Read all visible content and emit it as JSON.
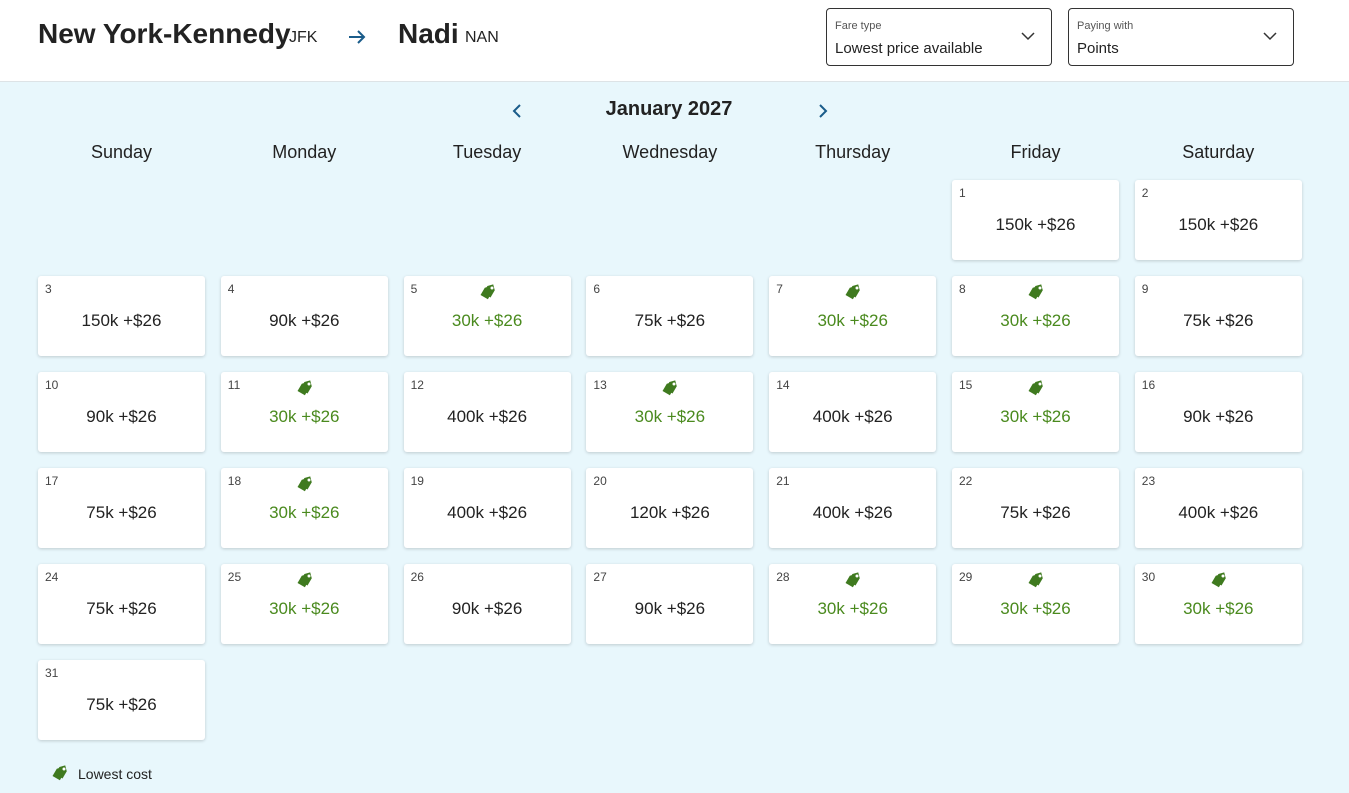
{
  "header": {
    "origin_city": "New York-Kennedy",
    "origin_code": "JFK",
    "destination_city": "Nadi",
    "destination_code": "NAN"
  },
  "fare_type": {
    "label": "Fare type",
    "value": "Lowest price available"
  },
  "paying_with": {
    "label": "Paying with",
    "value": "Points"
  },
  "calendar": {
    "month": "January 2027",
    "weekdays": [
      "Sunday",
      "Monday",
      "Tuesday",
      "Wednesday",
      "Thursday",
      "Friday",
      "Saturday"
    ],
    "weeks": [
      [
        null,
        null,
        null,
        null,
        null,
        {
          "day": 1,
          "price": "150k +$26",
          "lowest": false
        },
        {
          "day": 2,
          "price": "150k +$26",
          "lowest": false
        }
      ],
      [
        {
          "day": 3,
          "price": "150k +$26",
          "lowest": false
        },
        {
          "day": 4,
          "price": "90k +$26",
          "lowest": false
        },
        {
          "day": 5,
          "price": "30k +$26",
          "lowest": true
        },
        {
          "day": 6,
          "price": "75k +$26",
          "lowest": false
        },
        {
          "day": 7,
          "price": "30k +$26",
          "lowest": true
        },
        {
          "day": 8,
          "price": "30k +$26",
          "lowest": true
        },
        {
          "day": 9,
          "price": "75k +$26",
          "lowest": false
        }
      ],
      [
        {
          "day": 10,
          "price": "90k +$26",
          "lowest": false
        },
        {
          "day": 11,
          "price": "30k +$26",
          "lowest": true
        },
        {
          "day": 12,
          "price": "400k +$26",
          "lowest": false
        },
        {
          "day": 13,
          "price": "30k +$26",
          "lowest": true
        },
        {
          "day": 14,
          "price": "400k +$26",
          "lowest": false
        },
        {
          "day": 15,
          "price": "30k +$26",
          "lowest": true
        },
        {
          "day": 16,
          "price": "90k +$26",
          "lowest": false
        }
      ],
      [
        {
          "day": 17,
          "price": "75k +$26",
          "lowest": false
        },
        {
          "day": 18,
          "price": "30k +$26",
          "lowest": true
        },
        {
          "day": 19,
          "price": "400k +$26",
          "lowest": false
        },
        {
          "day": 20,
          "price": "120k +$26",
          "lowest": false
        },
        {
          "day": 21,
          "price": "400k +$26",
          "lowest": false
        },
        {
          "day": 22,
          "price": "75k +$26",
          "lowest": false
        },
        {
          "day": 23,
          "price": "400k +$26",
          "lowest": false
        }
      ],
      [
        {
          "day": 24,
          "price": "75k +$26",
          "lowest": false
        },
        {
          "day": 25,
          "price": "30k +$26",
          "lowest": true
        },
        {
          "day": 26,
          "price": "90k +$26",
          "lowest": false
        },
        {
          "day": 27,
          "price": "90k +$26",
          "lowest": false
        },
        {
          "day": 28,
          "price": "30k +$26",
          "lowest": true
        },
        {
          "day": 29,
          "price": "30k +$26",
          "lowest": true
        },
        {
          "day": 30,
          "price": "30k +$26",
          "lowest": true
        }
      ],
      [
        {
          "day": 31,
          "price": "75k +$26",
          "lowest": false
        },
        null,
        null,
        null,
        null,
        null,
        null
      ]
    ]
  },
  "legend": {
    "label": "Lowest cost"
  }
}
